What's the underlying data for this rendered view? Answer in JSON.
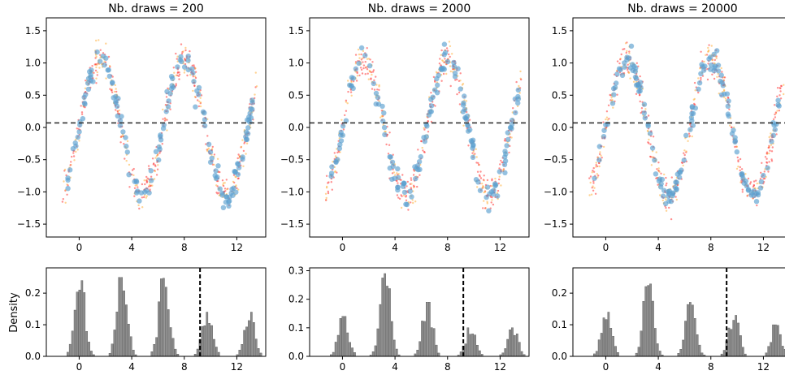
{
  "figure": {
    "density_label": "Density"
  },
  "chart_data": [
    {
      "type": "scatter",
      "title": "Nb. draws = 200",
      "xlabel": "",
      "ylabel": "",
      "xlim": [
        -2.5,
        14.2
      ],
      "ylim": [
        -1.7,
        1.7
      ],
      "xticks": [
        "0",
        "4",
        "8",
        "12"
      ],
      "yticks": [
        "-1.5",
        "-1.0",
        "-0.5",
        "0.0",
        "0.5",
        "1.0",
        "1.5"
      ],
      "hline": 0.07,
      "series_colors": [
        "#ff3333",
        "#ffae3a",
        "#5a9fd0"
      ],
      "curve": {
        "amplitude": 1.05,
        "frequency": 0.98,
        "x_range": [
          -1.3,
          13.6
        ]
      }
    },
    {
      "type": "bar",
      "xlabel": "",
      "ylabel": "Density",
      "xlim": [
        -2.5,
        14.2
      ],
      "ylim": [
        0,
        0.28
      ],
      "xticks": [
        "0",
        "4",
        "8",
        "12"
      ],
      "yticks": [
        "0.0",
        "0.1",
        "0.2"
      ],
      "vline": 9.2,
      "peaks": [
        {
          "center": 0.0,
          "height": 0.24
        },
        {
          "center": 3.2,
          "height": 0.25
        },
        {
          "center": 6.4,
          "height": 0.25
        },
        {
          "center": 9.7,
          "height": 0.14
        },
        {
          "center": 12.9,
          "height": 0.14
        }
      ]
    },
    {
      "type": "scatter",
      "title": "Nb. draws = 2000",
      "xlabel": "",
      "ylabel": "",
      "xlim": [
        -2.5,
        14.2
      ],
      "ylim": [
        -1.7,
        1.7
      ],
      "xticks": [
        "0",
        "4",
        "8",
        "12"
      ],
      "yticks": [
        "-1.5",
        "-1.0",
        "-0.5",
        "0.0",
        "0.5",
        "1.0",
        "1.5"
      ],
      "hline": 0.07,
      "series_colors": [
        "#ff3333",
        "#ffae3a",
        "#5a9fd0"
      ],
      "curve": {
        "amplitude": 1.05,
        "frequency": 0.98,
        "x_range": [
          -1.3,
          13.6
        ]
      }
    },
    {
      "type": "bar",
      "xlabel": "",
      "ylabel": "",
      "xlim": [
        -2.5,
        14.2
      ],
      "ylim": [
        0,
        0.31
      ],
      "xticks": [
        "0",
        "4",
        "8",
        "12"
      ],
      "yticks": [
        "0.0",
        "0.1",
        "0.2",
        "0.3"
      ],
      "vline": 9.2,
      "peaks": [
        {
          "center": 0.0,
          "height": 0.14
        },
        {
          "center": 3.2,
          "height": 0.29
        },
        {
          "center": 6.4,
          "height": 0.19
        },
        {
          "center": 9.7,
          "height": 0.1
        },
        {
          "center": 12.9,
          "height": 0.1
        }
      ]
    },
    {
      "type": "scatter",
      "title": "Nb. draws = 20000",
      "xlabel": "",
      "ylabel": "",
      "xlim": [
        -2.5,
        14.2
      ],
      "ylim": [
        -1.7,
        1.7
      ],
      "xticks": [
        "0",
        "4",
        "8",
        "12"
      ],
      "yticks": [
        "-1.5",
        "-1.0",
        "-0.5",
        "0.0",
        "0.5",
        "1.0",
        "1.5"
      ],
      "hline": 0.07,
      "series_colors": [
        "#ff3333",
        "#ffae3a",
        "#5a9fd0"
      ],
      "curve": {
        "amplitude": 1.05,
        "frequency": 0.98,
        "x_range": [
          -1.3,
          13.6
        ]
      }
    },
    {
      "type": "bar",
      "xlabel": "",
      "ylabel": "",
      "xlim": [
        -2.5,
        14.2
      ],
      "ylim": [
        0,
        0.28
      ],
      "xticks": [
        "0",
        "4",
        "8",
        "12"
      ],
      "yticks": [
        "0.0",
        "0.1",
        "0.2"
      ],
      "vline": 9.2,
      "peaks": [
        {
          "center": 0.0,
          "height": 0.14
        },
        {
          "center": 3.2,
          "height": 0.25
        },
        {
          "center": 6.4,
          "height": 0.18
        },
        {
          "center": 9.7,
          "height": 0.13
        },
        {
          "center": 12.9,
          "height": 0.1
        }
      ]
    }
  ]
}
